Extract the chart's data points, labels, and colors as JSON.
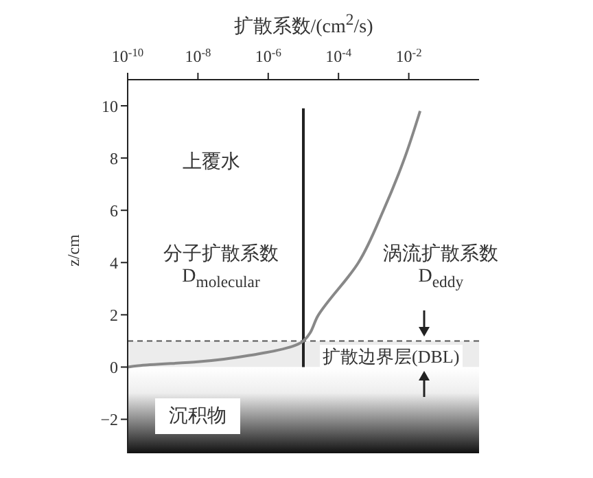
{
  "chart_data": {
    "type": "line",
    "xlabel": "扩散系数/(cm$^{2}$/s)",
    "ylabel": "z/cm",
    "log": "x",
    "xlim": [
      1e-10,
      1
    ],
    "xticks": [
      {
        "value": 1e-10,
        "label": "10$^{-10}$"
      },
      {
        "value": 1e-08,
        "label": "10$^{-8}$"
      },
      {
        "value": 1e-06,
        "label": "10$^{-6}$"
      },
      {
        "value": 0.0001,
        "label": "10$^{-4}$"
      },
      {
        "value": 0.01,
        "label": "10$^{-2}$"
      }
    ],
    "ylim": [
      -3.3,
      11
    ],
    "yticks": [
      -2,
      0,
      2,
      4,
      6,
      8,
      10
    ],
    "series": [
      {
        "name": "分子扩散系数 D$_{molecular}$",
        "color": "#222222",
        "x": [
          1e-05,
          1e-05
        ],
        "values": [
          0,
          9.9
        ]
      },
      {
        "name": "涡流扩散系数 D$_{eddy}$",
        "color": "#888888",
        "x": [
          1e-10,
          2e-10,
          1e-08,
          5e-07,
          1e-05,
          2.7e-05,
          0.00037,
          0.0019,
          0.0076,
          0.021
        ],
        "values": [
          0,
          0.05,
          0.2,
          0.5,
          1,
          2,
          4,
          6,
          8,
          9.8
        ]
      }
    ],
    "ref_lines": [
      {
        "axis": "y",
        "value": 1,
        "line_style": "dashed",
        "color": "#555555"
      }
    ],
    "bands": [
      {
        "axis": "y",
        "from": 0,
        "to": 1,
        "label": "扩散边界层(DBL)",
        "color": "#ececec"
      },
      {
        "axis": "y",
        "from": -3.3,
        "to": 0,
        "label": "沉积物",
        "color": "#111111"
      }
    ],
    "annotations": [
      "上覆水"
    ]
  }
}
